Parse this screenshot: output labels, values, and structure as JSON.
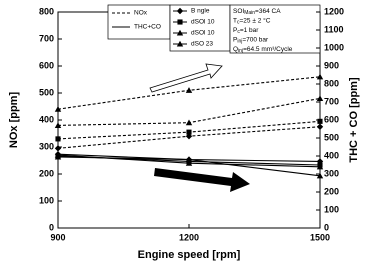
{
  "chart_data": {
    "type": "line",
    "x_label": "Engine speed [rpm]",
    "y_label": "NOx [ppm]",
    "y2_label": "THC + CO [ppm]",
    "x": [
      900,
      1200,
      1500
    ],
    "xlim": [
      900,
      1500
    ],
    "xticks": [
      900,
      1200,
      1500
    ],
    "ylim": [
      0,
      800
    ],
    "yticks": [
      0,
      100,
      200,
      300,
      400,
      500,
      600,
      700,
      800
    ],
    "y2lim": [
      0,
      1200
    ],
    "y2ticks": [
      0,
      100,
      200,
      300,
      400,
      500,
      600,
      700,
      800,
      900,
      1000,
      1100,
      1200
    ],
    "quantities": [
      "NOx",
      "THC+CO"
    ],
    "fuels": [
      {
        "name": "B ngle",
        "marker": "diamond"
      },
      {
        "name": "dSOl 10",
        "marker": "square"
      },
      {
        "name": "dSOl 10",
        "marker": "triangle"
      },
      {
        "name": "dSO 23",
        "marker": "triangle"
      }
    ],
    "series": [
      {
        "quantity": 0,
        "fuel": 3,
        "color": "#000",
        "values": [
          440,
          510,
          560
        ]
      },
      {
        "quantity": 0,
        "fuel": 2,
        "color": "#000",
        "values": [
          380,
          390,
          480
        ]
      },
      {
        "quantity": 0,
        "fuel": 1,
        "color": "#000",
        "values": [
          330,
          355,
          395
        ]
      },
      {
        "quantity": 0,
        "fuel": 0,
        "color": "#000",
        "values": [
          295,
          340,
          375
        ]
      },
      {
        "quantity": 1,
        "fuel": 0,
        "color": "#000",
        "axis": "y2",
        "values": [
          410,
          380,
          370
        ]
      },
      {
        "quantity": 1,
        "fuel": 1,
        "color": "#000",
        "axis": "y2",
        "values": [
          400,
          370,
          350
        ]
      },
      {
        "quantity": 1,
        "fuel": 2,
        "color": "#000",
        "axis": "y2",
        "values": [
          405,
          360,
          340
        ]
      },
      {
        "quantity": 1,
        "fuel": 3,
        "color": "#000",
        "axis": "y2",
        "values": [
          395,
          380,
          290
        ]
      }
    ],
    "conditions": [
      {
        "main": "SOI",
        "sub": "Main",
        "rest": "=364 CA"
      },
      {
        "main": "T",
        "sub": "c",
        "rest": "=25 ± 2 °C"
      },
      {
        "main": "P",
        "sub": "c",
        "rest": "=1 bar"
      },
      {
        "main": "P",
        "sub": "inj",
        "rest": "=700 bar"
      },
      {
        "main": "Q",
        "sub": "inj",
        "rest": "=64.5 mm³/Cycle"
      }
    ]
  }
}
